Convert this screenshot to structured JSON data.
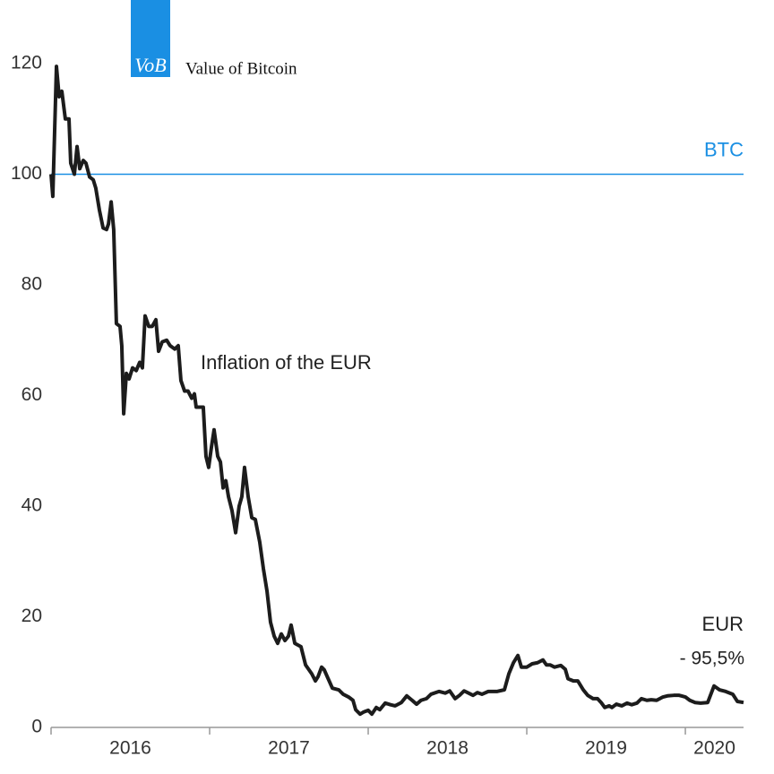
{
  "chart_data": {
    "type": "line",
    "brand": {
      "logo": "VoB",
      "name": "Value of Bitcoin"
    },
    "annotations": [
      "Inflation of the EUR",
      "- 95,5%"
    ],
    "reference_lines": [
      {
        "name": "BTC",
        "value": 100,
        "color": "#1a8fe3"
      }
    ],
    "x": [
      2016.0,
      2016.011,
      2016.034,
      2016.051,
      2016.068,
      2016.09,
      2016.113,
      2016.124,
      2016.147,
      2016.164,
      2016.181,
      2016.203,
      2016.22,
      2016.243,
      2016.266,
      2016.282,
      2016.305,
      2016.328,
      2016.35,
      2016.362,
      2016.379,
      2016.395,
      2016.412,
      2016.435,
      2016.446,
      2016.458,
      2016.475,
      2016.492,
      2016.514,
      2016.537,
      2016.559,
      2016.576,
      2016.593,
      2016.616,
      2016.638,
      2016.661,
      2016.678,
      2016.701,
      2016.729,
      2016.751,
      2016.78,
      2016.802,
      2016.819,
      2016.842,
      2016.864,
      2016.887,
      2016.904,
      2016.915,
      2016.949,
      2016.96,
      2016.977,
      2016.994,
      2017.011,
      2017.028,
      2017.051,
      2017.068,
      2017.085,
      2017.102,
      2017.119,
      2017.141,
      2017.164,
      2017.186,
      2017.203,
      2017.22,
      2017.243,
      2017.266,
      2017.288,
      2017.316,
      2017.339,
      2017.362,
      2017.384,
      2017.407,
      2017.429,
      2017.452,
      2017.475,
      2017.497,
      2017.514,
      2017.537,
      2017.576,
      2017.605,
      2017.644,
      2017.667,
      2017.684,
      2017.706,
      2017.723,
      2017.746,
      2017.774,
      2017.814,
      2017.842,
      2017.876,
      2017.904,
      2017.921,
      2017.949,
      2017.972,
      2018.0,
      2018.023,
      2018.051,
      2018.073,
      2018.107,
      2018.141,
      2018.17,
      2018.209,
      2018.243,
      2018.277,
      2018.305,
      2018.333,
      2018.367,
      2018.396,
      2018.446,
      2018.486,
      2018.514,
      2018.548,
      2018.576,
      2018.605,
      2018.633,
      2018.661,
      2018.689,
      2018.718,
      2018.757,
      2018.814,
      2018.859,
      2018.887,
      2018.916,
      2018.944,
      2018.966,
      2019.0,
      2019.034,
      2019.068,
      2019.102,
      2019.124,
      2019.147,
      2019.175,
      2019.215,
      2019.243,
      2019.26,
      2019.294,
      2019.322,
      2019.356,
      2019.384,
      2019.418,
      2019.446,
      2019.469,
      2019.492,
      2019.52,
      2019.537,
      2019.565,
      2019.599,
      2019.633,
      2019.661,
      2019.695,
      2019.723,
      2019.757,
      2019.785,
      2019.819,
      2019.859,
      2019.887,
      2019.927,
      2019.961,
      2020.0,
      2020.028,
      2020.062,
      2020.096,
      2020.141,
      2020.181,
      2020.215,
      2020.254,
      2020.299,
      2020.328,
      2020.367
    ],
    "series": [
      {
        "name": "EUR",
        "color": "#1c1c1c",
        "values": [
          100,
          96,
          119.5,
          114,
          115,
          110,
          110,
          102,
          100,
          105,
          101,
          102.5,
          102,
          99.5,
          99,
          97.5,
          93.5,
          90.3,
          90,
          91,
          95,
          90,
          73,
          72.5,
          69,
          56.7,
          64,
          63,
          65,
          64.5,
          66,
          65,
          74.4,
          72.5,
          72.5,
          73.7,
          68,
          69.7,
          70,
          69,
          68.4,
          69,
          62.7,
          60.8,
          60.8,
          59.5,
          60.3,
          57.9,
          57.9,
          57.9,
          49,
          47,
          50.6,
          53.8,
          49,
          48,
          43.3,
          44.6,
          41.7,
          39.2,
          35.2,
          40,
          41.7,
          47,
          41.7,
          37.9,
          37.6,
          33.5,
          28.7,
          24.6,
          19,
          16.5,
          15.2,
          16.9,
          15.7,
          16.5,
          18.5,
          15.2,
          14.6,
          11.3,
          9.7,
          8.4,
          9.2,
          10.9,
          10.4,
          8.9,
          7.1,
          6.8,
          6,
          5.5,
          4.9,
          3.2,
          2.4,
          2.8,
          3.1,
          2.4,
          3.6,
          3.2,
          4.4,
          4.1,
          3.9,
          4.5,
          5.7,
          4.9,
          4.2,
          4.9,
          5.2,
          6,
          6.5,
          6.2,
          6.6,
          5.2,
          5.8,
          6.6,
          6.2,
          5.8,
          6.3,
          6,
          6.5,
          6.5,
          6.8,
          9.7,
          11.7,
          13,
          10.9,
          10.9,
          11.5,
          11.7,
          12.2,
          11.3,
          11.3,
          10.9,
          11.2,
          10.5,
          8.8,
          8.4,
          8.4,
          6.8,
          5.8,
          5.2,
          5.2,
          4.5,
          3.6,
          3.9,
          3.6,
          4.2,
          3.9,
          4.4,
          4.1,
          4.4,
          5.2,
          4.9,
          5,
          4.9,
          5.5,
          5.7,
          5.8,
          5.8,
          5.5,
          4.9,
          4.5,
          4.4,
          4.5,
          7.5,
          6.8,
          6.5,
          6,
          4.7,
          4.5
        ]
      }
    ],
    "xlim": [
      2016,
      2020.367
    ],
    "xticks": [
      2016,
      2017,
      2018,
      2019,
      2020
    ],
    "ylim": [
      0,
      120
    ],
    "yticks": [
      0,
      20,
      40,
      60,
      80,
      100,
      120
    ]
  }
}
